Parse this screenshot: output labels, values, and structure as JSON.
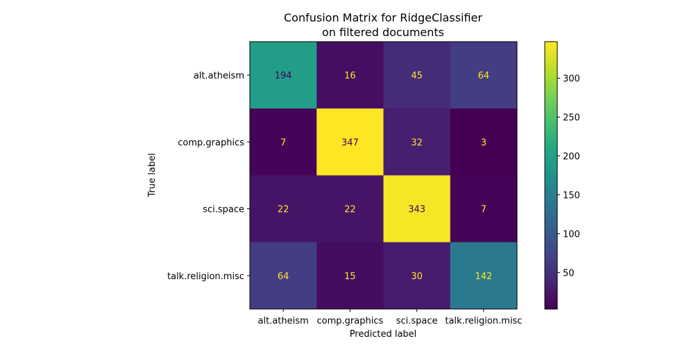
{
  "chart_data": {
    "type": "heatmap",
    "title": "Confusion Matrix for RidgeClassifier",
    "subtitle": "on filtered documents",
    "xlabel": "Predicted label",
    "ylabel": "True label",
    "x_categories": [
      "alt.atheism",
      "comp.graphics",
      "sci.space",
      "talk.religion.misc"
    ],
    "y_categories": [
      "alt.atheism",
      "comp.graphics",
      "sci.space",
      "talk.religion.misc"
    ],
    "values": [
      [
        194,
        16,
        45,
        64
      ],
      [
        7,
        347,
        32,
        3
      ],
      [
        22,
        22,
        343,
        7
      ],
      [
        64,
        15,
        30,
        142
      ]
    ],
    "colormap": "viridis",
    "color_range": [
      3,
      347
    ],
    "colorbar_ticks": [
      50,
      100,
      150,
      200,
      250,
      300
    ],
    "grid": false
  }
}
